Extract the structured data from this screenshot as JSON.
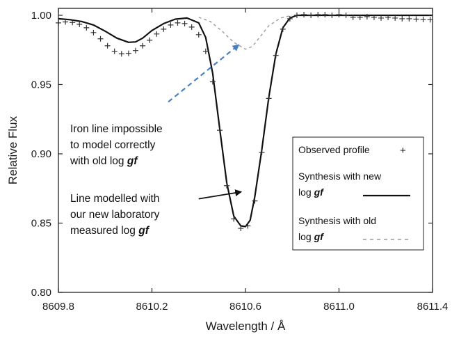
{
  "chart_data": {
    "type": "line",
    "xlabel": "Wavelength / Å",
    "ylabel": "Relative Flux",
    "xlim": [
      8609.8,
      8611.4
    ],
    "ylim": [
      0.8,
      1.005
    ],
    "x_ticks": [
      "8609.8",
      "8610.2",
      "8610.6",
      "8611.0",
      "8611.4"
    ],
    "y_ticks": [
      "0.80",
      "0.85",
      "0.90",
      "0.95",
      "1.00"
    ],
    "x_tick_values": [
      8609.8,
      8610.2,
      8610.6,
      8611.0,
      8611.4
    ],
    "y_tick_values": [
      0.8,
      0.85,
      0.9,
      0.95,
      1.0
    ],
    "legend_position": "right",
    "series": [
      {
        "name": "Observed profile",
        "style": "markers-plus",
        "color": "#333333",
        "x": [
          8609.8,
          8609.83,
          8609.86,
          8609.89,
          8609.92,
          8609.95,
          8609.98,
          8610.01,
          8610.04,
          8610.07,
          8610.1,
          8610.13,
          8610.16,
          8610.19,
          8610.22,
          8610.25,
          8610.28,
          8610.31,
          8610.34,
          8610.37,
          8610.4,
          8610.43,
          8610.46,
          8610.49,
          8610.52,
          8610.55,
          8610.58,
          8610.61,
          8610.64,
          8610.67,
          8610.7,
          8610.73,
          8610.76,
          8610.79,
          8610.82,
          8610.85,
          8610.88,
          8610.91,
          8610.94,
          8610.97,
          8611.0,
          8611.03,
          8611.06,
          8611.09,
          8611.12,
          8611.15,
          8611.18,
          8611.21,
          8611.24,
          8611.27,
          8611.3,
          8611.33,
          8611.36,
          8611.39
        ],
        "y": [
          0.9945,
          0.9952,
          0.9948,
          0.9935,
          0.991,
          0.9875,
          0.983,
          0.978,
          0.974,
          0.9722,
          0.9725,
          0.9745,
          0.978,
          0.982,
          0.9865,
          0.99,
          0.993,
          0.9945,
          0.994,
          0.9915,
          0.986,
          0.974,
          0.952,
          0.917,
          0.877,
          0.853,
          0.8462,
          0.848,
          0.866,
          0.901,
          0.94,
          0.971,
          0.99,
          0.9975,
          1.0,
          1.0005,
          1.0,
          1.0005,
          1.0005,
          1.0,
          1.0005,
          1.0,
          0.9985,
          0.9985,
          0.999,
          0.9985,
          0.998,
          0.9985,
          0.998,
          0.9975,
          0.9975,
          0.9972,
          0.997,
          0.9968
        ]
      },
      {
        "name": "Synthesis with new log gf",
        "style": "solid",
        "color": "#111111",
        "x": [
          8609.8,
          8609.85,
          8609.9,
          8609.95,
          8610.0,
          8610.05,
          8610.1,
          8610.13,
          8610.16,
          8610.2,
          8610.25,
          8610.3,
          8610.35,
          8610.4,
          8610.43,
          8610.46,
          8610.49,
          8610.52,
          8610.55,
          8610.58,
          8610.6,
          8610.62,
          8610.64,
          8610.67,
          8610.7,
          8610.73,
          8610.76,
          8610.79,
          8610.82,
          8610.85,
          8610.9,
          8611.0,
          8611.1,
          8611.2,
          8611.3,
          8611.4
        ],
        "y": [
          0.9975,
          0.9968,
          0.9955,
          0.993,
          0.9885,
          0.9835,
          0.9805,
          0.9808,
          0.9835,
          0.989,
          0.994,
          0.9972,
          0.998,
          0.9945,
          0.984,
          0.958,
          0.918,
          0.879,
          0.855,
          0.848,
          0.8475,
          0.852,
          0.869,
          0.903,
          0.941,
          0.972,
          0.991,
          0.998,
          1.0,
          1.0,
          1.0,
          1.0,
          1.0,
          1.0,
          1.0,
          1.0
        ]
      },
      {
        "name": "Synthesis with old log gf",
        "style": "dashed",
        "color": "#9a9a9a",
        "x": [
          8610.4,
          8610.45,
          8610.5,
          8610.55,
          8610.6,
          8610.63,
          8610.66,
          8610.7,
          8610.75,
          8610.8
        ],
        "y": [
          0.9985,
          0.9955,
          0.9885,
          0.9805,
          0.9755,
          0.9775,
          0.984,
          0.9925,
          0.998,
          1.0
        ]
      }
    ],
    "legend": [
      {
        "label": "Observed profile",
        "marker": "+"
      },
      {
        "label_line1": "Synthesis with new",
        "label_line2_prefix": "log ",
        "label_line2_italic": "gf"
      },
      {
        "label_line1": "Synthesis with old",
        "label_line2_prefix": "log ",
        "label_line2_italic": "gf"
      }
    ],
    "annotations": [
      {
        "lines": [
          "Iron line impossible",
          "to model correctly"
        ],
        "last_line_prefix": "with old log ",
        "last_line_italic": "gf",
        "arrow_style": "dashed",
        "arrow_color": "#4a7fc1",
        "arrow_from": [
          8610.27,
          0.9375
        ],
        "arrow_to": [
          8610.57,
          0.9785
        ]
      },
      {
        "lines": [
          "Line modelled with",
          "our new laboratory"
        ],
        "last_line_prefix": "measured log ",
        "last_line_italic": "gf",
        "arrow_style": "solid",
        "arrow_color": "#111111",
        "arrow_from": [
          8610.4,
          0.8675
        ],
        "arrow_to": [
          8610.58,
          0.8725
        ]
      }
    ]
  }
}
